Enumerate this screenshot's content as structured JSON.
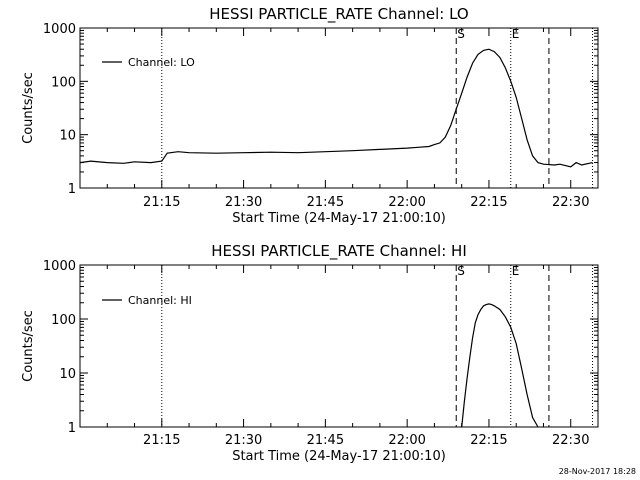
{
  "chart_data": [
    {
      "type": "line",
      "title": "HESSI PARTICLE_RATE Channel: LO",
      "xlabel": "Start Time (24-May-17 21:00:10)",
      "ylabel": "Counts/sec",
      "y_scale": "log",
      "ylim": [
        1,
        1000
      ],
      "y_ticks": [
        "1",
        "10",
        "100",
        "1000"
      ],
      "x_ticks": [
        "21:15",
        "21:30",
        "21:45",
        "22:00",
        "22:15",
        "22:30"
      ],
      "xlim_minutes": [
        0,
        95
      ],
      "legend": {
        "position": "top-left",
        "label": "Channel: LO"
      },
      "markers": {
        "start_label": "S",
        "end_label": "E"
      },
      "series": [
        {
          "name": "Channel: LO",
          "x": [
            0,
            2,
            5,
            8,
            10,
            13,
            15,
            16,
            18,
            20,
            25,
            30,
            35,
            40,
            45,
            50,
            55,
            60,
            62,
            64,
            65,
            66,
            67,
            68,
            69,
            70,
            71,
            72,
            73,
            74,
            75,
            76,
            77,
            78,
            79,
            80,
            81,
            82,
            83,
            84,
            85,
            87,
            88,
            90,
            91,
            92,
            94
          ],
          "y": [
            3.0,
            3.2,
            3.0,
            2.9,
            3.1,
            3.0,
            3.2,
            4.5,
            4.8,
            4.6,
            4.5,
            4.6,
            4.7,
            4.6,
            4.8,
            5.0,
            5.3,
            5.6,
            5.8,
            6.0,
            6.5,
            7.0,
            9,
            15,
            30,
            60,
            120,
            220,
            320,
            380,
            400,
            360,
            280,
            180,
            100,
            50,
            20,
            8,
            4.0,
            3.0,
            2.8,
            2.7,
            2.8,
            2.5,
            3.0,
            2.7,
            3.0
          ]
        }
      ],
      "vertical_lines": [
        {
          "label": "",
          "x": 15,
          "style": "dotted"
        },
        {
          "label": "S",
          "x": 69,
          "style": "dashed"
        },
        {
          "label": "E",
          "x": 79,
          "style": "dotted"
        },
        {
          "label": "",
          "x": 86,
          "style": "dashed"
        },
        {
          "label": "",
          "x": 94,
          "style": "dotted"
        }
      ]
    },
    {
      "type": "line",
      "title": "HESSI PARTICLE_RATE Channel: HI",
      "xlabel": "Start Time (24-May-17 21:00:10)",
      "ylabel": "Counts/sec",
      "y_scale": "log",
      "ylim": [
        1,
        1000
      ],
      "y_ticks": [
        "1",
        "10",
        "100",
        "1000"
      ],
      "x_ticks": [
        "21:15",
        "21:30",
        "21:45",
        "22:00",
        "22:15",
        "22:30"
      ],
      "xlim_minutes": [
        0,
        95
      ],
      "legend": {
        "position": "top-left",
        "label": "Channel: HI"
      },
      "markers": {
        "start_label": "S",
        "end_label": "E"
      },
      "series": [
        {
          "name": "Channel: HI",
          "x": [
            70,
            70.5,
            71,
            71.5,
            72,
            72.5,
            73,
            73.5,
            74,
            74.5,
            75,
            75.5,
            76,
            77,
            78,
            79,
            80,
            81,
            82,
            83,
            84
          ],
          "y": [
            1,
            3,
            8,
            20,
            45,
            85,
            120,
            150,
            175,
            185,
            190,
            185,
            175,
            150,
            110,
            70,
            35,
            12,
            4,
            1.5,
            1
          ]
        }
      ],
      "vertical_lines": [
        {
          "label": "",
          "x": 15,
          "style": "dotted"
        },
        {
          "label": "S",
          "x": 69,
          "style": "dashed"
        },
        {
          "label": "E",
          "x": 79,
          "style": "dotted"
        },
        {
          "label": "",
          "x": 86,
          "style": "dashed"
        },
        {
          "label": "",
          "x": 94,
          "style": "dotted"
        }
      ]
    }
  ],
  "timestamp": "28-Nov-2017 18:28"
}
